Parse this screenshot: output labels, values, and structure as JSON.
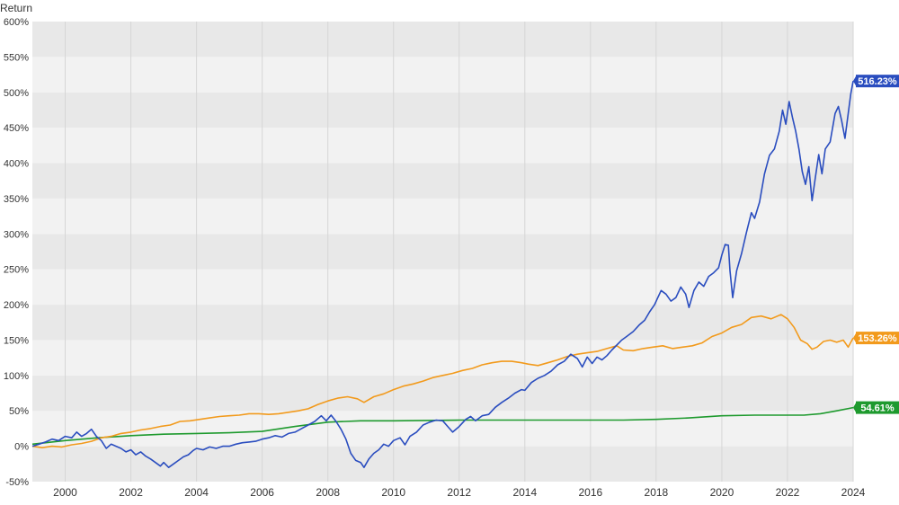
{
  "chart_data": {
    "type": "line",
    "ylabel": "Return",
    "ylim": [
      -50,
      600
    ],
    "xlim": [
      1999.0,
      2024.0
    ],
    "y_ticks": [
      -50,
      0,
      50,
      100,
      150,
      200,
      250,
      300,
      350,
      400,
      450,
      500,
      550,
      600
    ],
    "y_tick_labels": [
      "-50%",
      "0%",
      "50%",
      "100%",
      "150%",
      "200%",
      "250%",
      "300%",
      "350%",
      "400%",
      "450%",
      "500%",
      "550%",
      "600%"
    ],
    "x_ticks": [
      2000,
      2002,
      2004,
      2006,
      2008,
      2010,
      2012,
      2014,
      2016,
      2018,
      2020,
      2022,
      2024
    ],
    "x_tick_labels": [
      "2000",
      "2002",
      "2004",
      "2006",
      "2008",
      "2010",
      "2012",
      "2014",
      "2016",
      "2018",
      "2020",
      "2022",
      "2024"
    ],
    "grid": "horizontal alternating bands, vertical lines",
    "legend": "none",
    "series": [
      {
        "color": "#2a4dbf",
        "end_label": "516.23%",
        "points": [
          [
            1999.0,
            0
          ],
          [
            1999.2,
            3
          ],
          [
            1999.4,
            6
          ],
          [
            1999.6,
            10
          ],
          [
            1999.8,
            8
          ],
          [
            2000.0,
            14
          ],
          [
            2000.2,
            12
          ],
          [
            2000.35,
            20
          ],
          [
            2000.5,
            14
          ],
          [
            2000.65,
            18
          ],
          [
            2000.8,
            24
          ],
          [
            2000.95,
            14
          ],
          [
            2001.1,
            8
          ],
          [
            2001.25,
            -3
          ],
          [
            2001.4,
            3
          ],
          [
            2001.55,
            0
          ],
          [
            2001.7,
            -3
          ],
          [
            2001.85,
            -8
          ],
          [
            2002.0,
            -5
          ],
          [
            2002.15,
            -12
          ],
          [
            2002.3,
            -8
          ],
          [
            2002.45,
            -14
          ],
          [
            2002.6,
            -18
          ],
          [
            2002.75,
            -23
          ],
          [
            2002.9,
            -28
          ],
          [
            2003.0,
            -23
          ],
          [
            2003.15,
            -30
          ],
          [
            2003.3,
            -25
          ],
          [
            2003.45,
            -20
          ],
          [
            2003.6,
            -15
          ],
          [
            2003.75,
            -12
          ],
          [
            2003.9,
            -6
          ],
          [
            2004.0,
            -3
          ],
          [
            2004.2,
            -5
          ],
          [
            2004.4,
            -1
          ],
          [
            2004.6,
            -3
          ],
          [
            2004.8,
            0
          ],
          [
            2005.0,
            0
          ],
          [
            2005.2,
            3
          ],
          [
            2005.4,
            5
          ],
          [
            2005.6,
            6
          ],
          [
            2005.8,
            7
          ],
          [
            2006.0,
            10
          ],
          [
            2006.2,
            12
          ],
          [
            2006.4,
            15
          ],
          [
            2006.6,
            13
          ],
          [
            2006.8,
            18
          ],
          [
            2007.0,
            20
          ],
          [
            2007.2,
            25
          ],
          [
            2007.4,
            30
          ],
          [
            2007.6,
            35
          ],
          [
            2007.8,
            43
          ],
          [
            2007.95,
            36
          ],
          [
            2008.1,
            44
          ],
          [
            2008.25,
            35
          ],
          [
            2008.4,
            24
          ],
          [
            2008.55,
            10
          ],
          [
            2008.7,
            -10
          ],
          [
            2008.85,
            -20
          ],
          [
            2009.0,
            -23
          ],
          [
            2009.1,
            -30
          ],
          [
            2009.25,
            -18
          ],
          [
            2009.4,
            -10
          ],
          [
            2009.55,
            -5
          ],
          [
            2009.7,
            3
          ],
          [
            2009.85,
            0
          ],
          [
            2010.0,
            8
          ],
          [
            2010.2,
            12
          ],
          [
            2010.35,
            2
          ],
          [
            2010.5,
            14
          ],
          [
            2010.7,
            20
          ],
          [
            2010.9,
            30
          ],
          [
            2011.1,
            34
          ],
          [
            2011.3,
            37
          ],
          [
            2011.5,
            36
          ],
          [
            2011.65,
            28
          ],
          [
            2011.8,
            20
          ],
          [
            2012.0,
            28
          ],
          [
            2012.2,
            38
          ],
          [
            2012.35,
            42
          ],
          [
            2012.5,
            36
          ],
          [
            2012.7,
            43
          ],
          [
            2012.9,
            45
          ],
          [
            2013.1,
            55
          ],
          [
            2013.3,
            62
          ],
          [
            2013.5,
            68
          ],
          [
            2013.7,
            75
          ],
          [
            2013.9,
            80
          ],
          [
            2014.0,
            79
          ],
          [
            2014.2,
            90
          ],
          [
            2014.4,
            96
          ],
          [
            2014.6,
            100
          ],
          [
            2014.8,
            106
          ],
          [
            2015.0,
            115
          ],
          [
            2015.2,
            120
          ],
          [
            2015.4,
            130
          ],
          [
            2015.6,
            124
          ],
          [
            2015.75,
            112
          ],
          [
            2015.9,
            126
          ],
          [
            2016.05,
            117
          ],
          [
            2016.2,
            126
          ],
          [
            2016.35,
            122
          ],
          [
            2016.5,
            128
          ],
          [
            2016.65,
            136
          ],
          [
            2016.8,
            143
          ],
          [
            2016.95,
            150
          ],
          [
            2017.1,
            155
          ],
          [
            2017.3,
            162
          ],
          [
            2017.5,
            172
          ],
          [
            2017.65,
            178
          ],
          [
            2017.8,
            190
          ],
          [
            2017.95,
            200
          ],
          [
            2018.05,
            210
          ],
          [
            2018.15,
            220
          ],
          [
            2018.3,
            215
          ],
          [
            2018.45,
            205
          ],
          [
            2018.6,
            210
          ],
          [
            2018.75,
            225
          ],
          [
            2018.9,
            215
          ],
          [
            2019.0,
            196
          ],
          [
            2019.15,
            220
          ],
          [
            2019.3,
            232
          ],
          [
            2019.45,
            226
          ],
          [
            2019.6,
            240
          ],
          [
            2019.75,
            245
          ],
          [
            2019.9,
            252
          ],
          [
            2020.0,
            270
          ],
          [
            2020.1,
            285
          ],
          [
            2020.2,
            284
          ],
          [
            2020.25,
            248
          ],
          [
            2020.33,
            210
          ],
          [
            2020.45,
            248
          ],
          [
            2020.6,
            272
          ],
          [
            2020.75,
            302
          ],
          [
            2020.9,
            330
          ],
          [
            2021.0,
            322
          ],
          [
            2021.15,
            345
          ],
          [
            2021.3,
            385
          ],
          [
            2021.45,
            411
          ],
          [
            2021.6,
            420
          ],
          [
            2021.75,
            445
          ],
          [
            2021.85,
            475
          ],
          [
            2021.95,
            455
          ],
          [
            2022.05,
            487
          ],
          [
            2022.15,
            465
          ],
          [
            2022.25,
            445
          ],
          [
            2022.35,
            420
          ],
          [
            2022.45,
            388
          ],
          [
            2022.55,
            370
          ],
          [
            2022.65,
            395
          ],
          [
            2022.75,
            347
          ],
          [
            2022.85,
            380
          ],
          [
            2022.95,
            412
          ],
          [
            2023.05,
            385
          ],
          [
            2023.15,
            420
          ],
          [
            2023.3,
            430
          ],
          [
            2023.45,
            470
          ],
          [
            2023.55,
            480
          ],
          [
            2023.65,
            460
          ],
          [
            2023.75,
            435
          ],
          [
            2023.85,
            470
          ],
          [
            2023.93,
            498
          ],
          [
            2024.0,
            516
          ]
        ]
      },
      {
        "color": "#f29a1c",
        "end_label": "153.26%",
        "points": [
          [
            1999.0,
            0
          ],
          [
            1999.3,
            -2
          ],
          [
            1999.6,
            0
          ],
          [
            1999.9,
            -1
          ],
          [
            2000.2,
            2
          ],
          [
            2000.5,
            4
          ],
          [
            2000.8,
            7
          ],
          [
            2001.1,
            12
          ],
          [
            2001.4,
            14
          ],
          [
            2001.7,
            18
          ],
          [
            2002.0,
            20
          ],
          [
            2002.3,
            23
          ],
          [
            2002.6,
            25
          ],
          [
            2002.9,
            28
          ],
          [
            2003.2,
            30
          ],
          [
            2003.5,
            35
          ],
          [
            2003.8,
            36
          ],
          [
            2004.1,
            38
          ],
          [
            2004.4,
            40
          ],
          [
            2004.7,
            42
          ],
          [
            2005.0,
            43
          ],
          [
            2005.3,
            44
          ],
          [
            2005.6,
            46
          ],
          [
            2005.9,
            46
          ],
          [
            2006.2,
            45
          ],
          [
            2006.5,
            46
          ],
          [
            2006.8,
            48
          ],
          [
            2007.1,
            50
          ],
          [
            2007.4,
            53
          ],
          [
            2007.7,
            59
          ],
          [
            2008.0,
            64
          ],
          [
            2008.3,
            68
          ],
          [
            2008.6,
            70
          ],
          [
            2008.9,
            67
          ],
          [
            2009.1,
            62
          ],
          [
            2009.4,
            70
          ],
          [
            2009.7,
            74
          ],
          [
            2010.0,
            80
          ],
          [
            2010.3,
            85
          ],
          [
            2010.6,
            88
          ],
          [
            2010.9,
            92
          ],
          [
            2011.2,
            97
          ],
          [
            2011.5,
            100
          ],
          [
            2011.8,
            103
          ],
          [
            2012.1,
            107
          ],
          [
            2012.4,
            110
          ],
          [
            2012.7,
            115
          ],
          [
            2013.0,
            118
          ],
          [
            2013.3,
            120
          ],
          [
            2013.6,
            120
          ],
          [
            2013.9,
            118
          ],
          [
            2014.1,
            116
          ],
          [
            2014.4,
            114
          ],
          [
            2014.7,
            118
          ],
          [
            2015.0,
            122
          ],
          [
            2015.3,
            127
          ],
          [
            2015.6,
            130
          ],
          [
            2015.9,
            132
          ],
          [
            2016.2,
            134
          ],
          [
            2016.5,
            138
          ],
          [
            2016.8,
            142
          ],
          [
            2017.0,
            136
          ],
          [
            2017.3,
            135
          ],
          [
            2017.6,
            138
          ],
          [
            2017.9,
            140
          ],
          [
            2018.2,
            142
          ],
          [
            2018.5,
            138
          ],
          [
            2018.8,
            140
          ],
          [
            2019.1,
            142
          ],
          [
            2019.4,
            146
          ],
          [
            2019.7,
            155
          ],
          [
            2020.0,
            160
          ],
          [
            2020.3,
            168
          ],
          [
            2020.6,
            172
          ],
          [
            2020.9,
            182
          ],
          [
            2021.2,
            184
          ],
          [
            2021.5,
            180
          ],
          [
            2021.8,
            186
          ],
          [
            2022.0,
            180
          ],
          [
            2022.2,
            168
          ],
          [
            2022.4,
            150
          ],
          [
            2022.6,
            145
          ],
          [
            2022.75,
            137
          ],
          [
            2022.9,
            140
          ],
          [
            2023.1,
            148
          ],
          [
            2023.3,
            150
          ],
          [
            2023.5,
            147
          ],
          [
            2023.7,
            150
          ],
          [
            2023.85,
            140
          ],
          [
            2024.0,
            153
          ]
        ]
      },
      {
        "color": "#1e9a2e",
        "end_label": "54.61%",
        "points": [
          [
            1999.0,
            3
          ],
          [
            2000.0,
            8
          ],
          [
            2001.0,
            12
          ],
          [
            2002.0,
            15
          ],
          [
            2003.0,
            17
          ],
          [
            2004.0,
            18
          ],
          [
            2005.0,
            19
          ],
          [
            2006.0,
            21
          ],
          [
            2007.0,
            28
          ],
          [
            2008.0,
            34
          ],
          [
            2009.0,
            36
          ],
          [
            2010.0,
            36
          ],
          [
            2012.0,
            37
          ],
          [
            2014.0,
            37
          ],
          [
            2016.0,
            37
          ],
          [
            2017.0,
            37
          ],
          [
            2018.0,
            38
          ],
          [
            2019.0,
            40
          ],
          [
            2020.0,
            43
          ],
          [
            2021.0,
            44
          ],
          [
            2022.0,
            44
          ],
          [
            2022.5,
            44
          ],
          [
            2023.0,
            46
          ],
          [
            2023.5,
            50
          ],
          [
            2024.0,
            54.61
          ]
        ]
      }
    ]
  }
}
